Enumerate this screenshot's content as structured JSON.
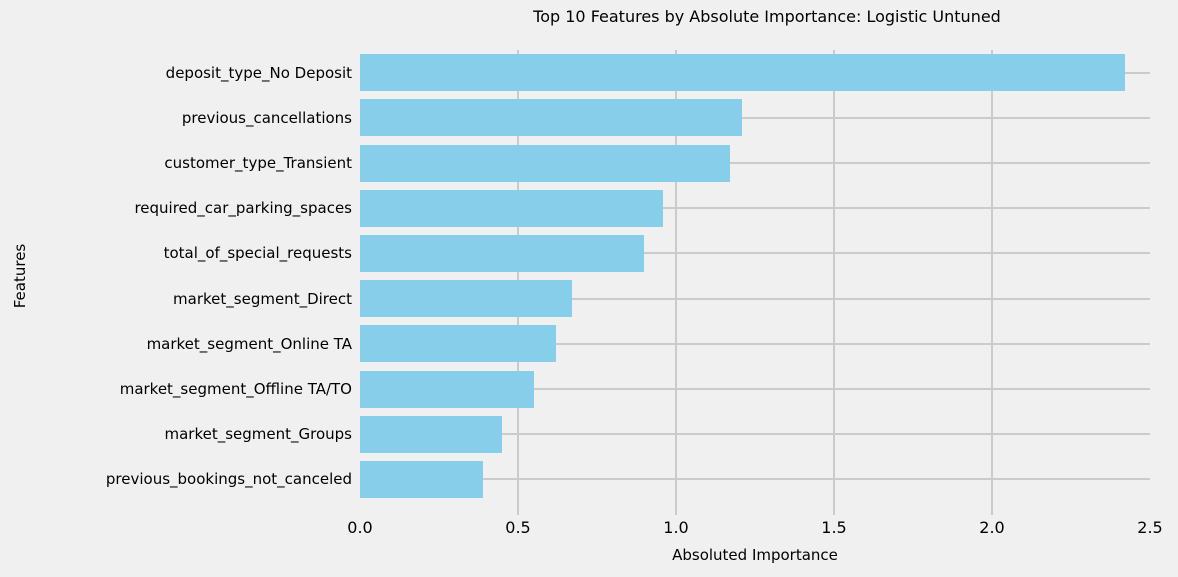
{
  "chart_data": {
    "type": "bar",
    "orientation": "horizontal",
    "title": "Top 10 Features by Absolute Importance: Logistic Untuned",
    "xlabel": "Absoluted Importance",
    "ylabel": "Features",
    "categories": [
      "deposit_type_No Deposit",
      "previous_cancellations",
      "customer_type_Transient",
      "required_car_parking_spaces",
      "total_of_special_requests",
      "market_segment_Direct",
      "market_segment_Online TA",
      "market_segment_Offline TA/TO",
      "market_segment_Groups",
      "previous_bookings_not_canceled"
    ],
    "values": [
      2.42,
      1.21,
      1.17,
      0.96,
      0.9,
      0.67,
      0.62,
      0.55,
      0.45,
      0.39
    ],
    "xlim": [
      0,
      2.5
    ],
    "xticks": [
      0.0,
      0.5,
      1.0,
      1.5,
      2.0,
      2.5
    ],
    "xtick_labels": [
      "0.0",
      "0.5",
      "1.0",
      "1.5",
      "2.0",
      "2.5"
    ],
    "grid": true,
    "gridline_xticks_inner": [
      0.5,
      1.0,
      1.5,
      2.0
    ],
    "legend": "none",
    "bar_color": "#87ceeb",
    "background_color": "#f0f0f0",
    "grid_color": "#cbcbcb",
    "text_color": "#000000"
  }
}
